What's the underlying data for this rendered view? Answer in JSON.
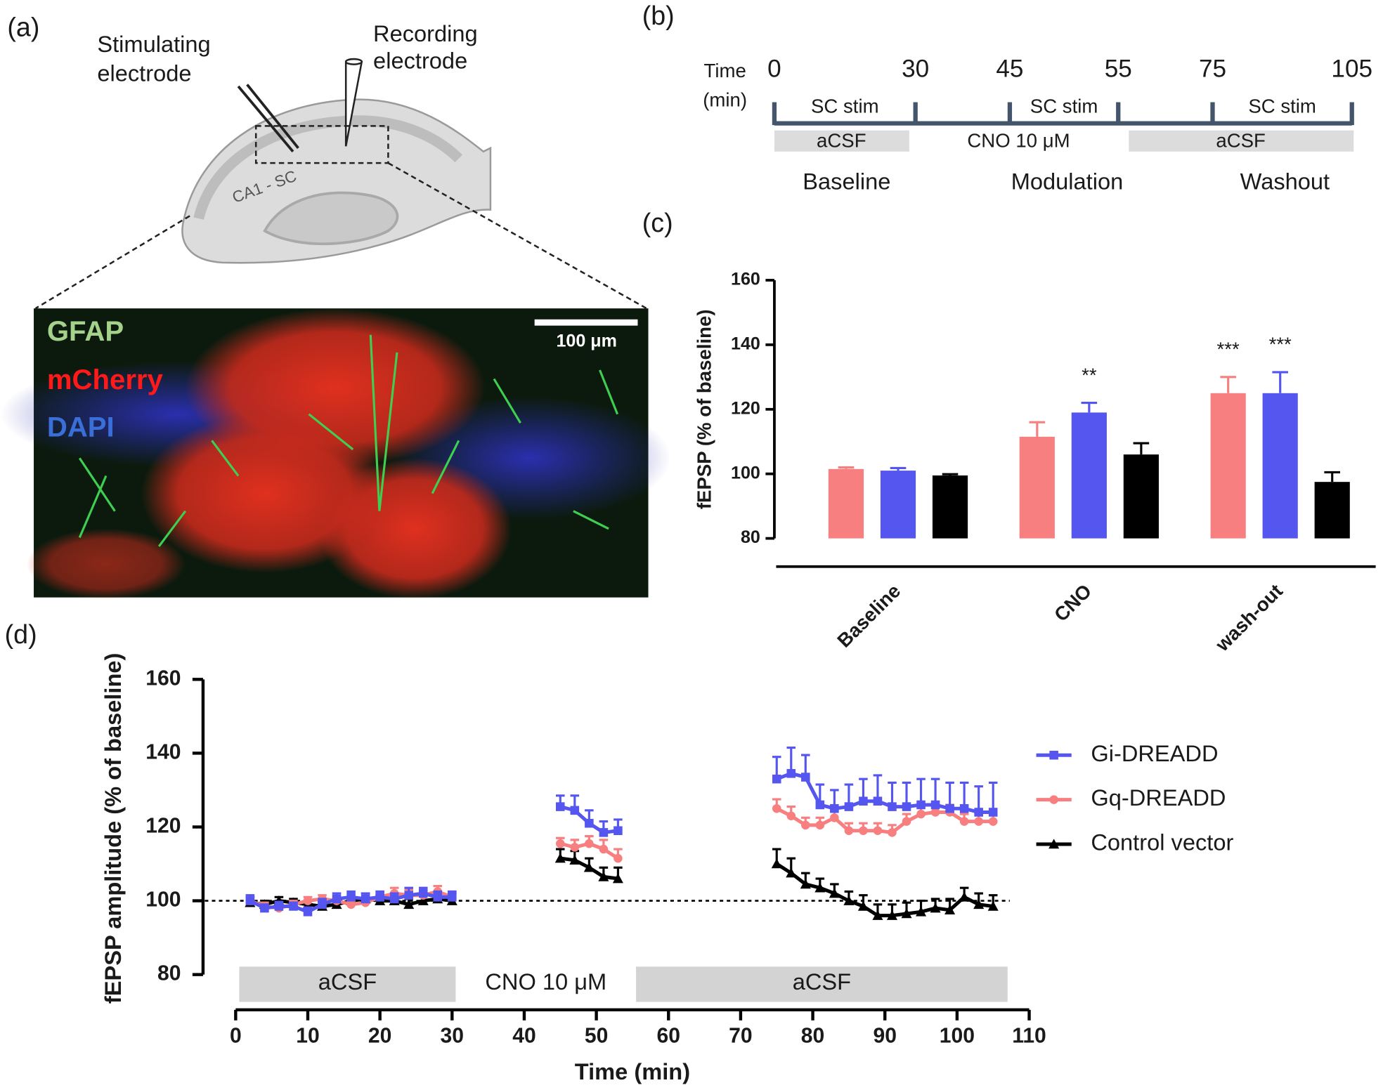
{
  "panel_labels": [
    "(a)",
    "(b)",
    "(c)",
    "(d)"
  ],
  "illustration": {
    "stimulating": [
      "Stimulating",
      "electrode"
    ],
    "recording": [
      "Recording",
      "electrode"
    ],
    "region": "CA1 - SC",
    "stains": [
      "GFAP",
      "mCherry",
      "DAPI"
    ],
    "scale_bar": "100 μm"
  },
  "timeline": {
    "label": [
      "Time",
      "(min)"
    ],
    "ticks": [
      0,
      30,
      45,
      55,
      75,
      105
    ],
    "stim": [
      "SC stim",
      "SC stim",
      "SC stim"
    ],
    "solutions": [
      "aCSF",
      "CNO 10 μM",
      "aCSF"
    ],
    "phases": [
      "Baseline",
      "Modulation",
      "Washout"
    ]
  },
  "chart_data": [
    {
      "type": "bar",
      "ylabel": "fEPSP (% of baseline)",
      "categories": [
        "Baseline",
        "CNO",
        "wash-out"
      ],
      "ylim": [
        80,
        160
      ],
      "yticks": [
        80,
        100,
        120,
        140,
        160
      ],
      "series": [
        {
          "color": "#f77f7f",
          "values": [
            101.5,
            111.5,
            125
          ],
          "errors": [
            0.5,
            4.5,
            5
          ],
          "significance": [
            null,
            null,
            "***"
          ]
        },
        {
          "color": "#5555f0",
          "values": [
            101,
            119,
            125
          ],
          "errors": [
            0.8,
            3,
            6.5
          ],
          "significance": [
            null,
            "**",
            "***"
          ]
        },
        {
          "color": "#000000",
          "values": [
            99.5,
            106,
            97.5
          ],
          "errors": [
            0.4,
            3.5,
            3
          ],
          "significance": [
            null,
            null,
            null
          ]
        }
      ]
    },
    {
      "type": "line",
      "xlabel": "Time (min)",
      "ylabel": "fEPSP amplitude (% of baseline)",
      "xlim": [
        0,
        110
      ],
      "xticks": [
        0,
        10,
        20,
        30,
        40,
        50,
        60,
        70,
        80,
        90,
        100,
        110
      ],
      "ylim": [
        80,
        160
      ],
      "yticks": [
        80,
        100,
        120,
        140,
        160
      ],
      "hline": 100,
      "legend": "right",
      "bands": [
        {
          "label": "aCSF",
          "start": 0.5,
          "end": 30.5,
          "shaded": true
        },
        {
          "label": "CNO 10 μM",
          "start": 30.5,
          "end": 55.5,
          "shaded": false
        },
        {
          "label": "aCSF",
          "start": 55.5,
          "end": 107,
          "shaded": true
        }
      ],
      "x": [
        2,
        4,
        6,
        8,
        10,
        12,
        14,
        16,
        18,
        20,
        22,
        24,
        26,
        28,
        30,
        45,
        47,
        49,
        51,
        53,
        75,
        77,
        79,
        81,
        83,
        85,
        87,
        89,
        91,
        93,
        95,
        97,
        99,
        101,
        103,
        105
      ],
      "series": [
        {
          "name": "Gi-DREADD",
          "color": "#5555f0",
          "marker": "square",
          "values": [
            100,
            98,
            98.5,
            98.5,
            97,
            99,
            100.5,
            101,
            100.5,
            101,
            100.5,
            101.5,
            102,
            101,
            101,
            125.5,
            124.5,
            121,
            118.5,
            119,
            133,
            134.5,
            133.5,
            126,
            125,
            125.5,
            127,
            127,
            125.5,
            125.5,
            126,
            126,
            125,
            125,
            124,
            124
          ],
          "errors": [
            1.5,
            1,
            1.2,
            1,
            1.2,
            1.5,
            1.5,
            1.5,
            1.5,
            1.5,
            1.5,
            2,
            1.5,
            1.5,
            1.5,
            3,
            4,
            3.5,
            3,
            3,
            6,
            7,
            6,
            5.5,
            5,
            6,
            6,
            7,
            6.5,
            6.5,
            7,
            7,
            7,
            7,
            7,
            8
          ]
        },
        {
          "name": "Gq-DREADD",
          "color": "#f77f7f",
          "marker": "circle",
          "values": [
            100,
            98.5,
            98,
            99,
            100,
            100.5,
            100,
            99,
            99.5,
            101,
            102,
            101.5,
            101.5,
            102.5,
            101,
            115.5,
            114.5,
            115.5,
            114,
            111.5,
            125,
            123,
            120.5,
            120.5,
            122.5,
            119,
            119,
            119,
            118.5,
            121.5,
            123.5,
            124,
            124,
            121.5,
            121.5,
            121.5
          ],
          "errors": [
            1,
            1,
            1,
            1,
            1,
            1,
            1,
            1,
            1,
            1.5,
            1.5,
            1.5,
            1.5,
            1.5,
            1.5,
            1.5,
            2,
            2,
            2.5,
            2.5,
            2.5,
            2.5,
            2,
            2,
            2,
            2,
            2,
            2,
            2,
            2,
            2,
            2,
            2,
            2,
            2,
            2
          ]
        },
        {
          "name": "Control vector",
          "color": "#000000",
          "marker": "triangle",
          "values": [
            99.5,
            99,
            100,
            99.5,
            99,
            98.5,
            99,
            100,
            100.5,
            100,
            100,
            99,
            100,
            100.5,
            100,
            111.5,
            111,
            109,
            106.5,
            106,
            110,
            107.5,
            104.5,
            103.5,
            102,
            100,
            98.5,
            96,
            96,
            96.5,
            97,
            98,
            97.5,
            101,
            99,
            98.5
          ],
          "errors": [
            1.5,
            1,
            1,
            1,
            1,
            1,
            1,
            1,
            1.5,
            1.5,
            1.5,
            1.5,
            2,
            2,
            2,
            2.5,
            2.5,
            2.5,
            2.5,
            3,
            4,
            4,
            3,
            2.5,
            2.5,
            2.5,
            3,
            3,
            3,
            3,
            3,
            2.5,
            3,
            2.5,
            3,
            3
          ]
        }
      ]
    }
  ]
}
